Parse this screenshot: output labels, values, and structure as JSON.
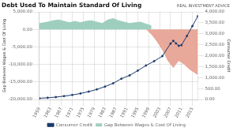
{
  "chart_data": {
    "type": "line",
    "title": "Debt Used To Maintain Standard Of Living",
    "annotation": "REAL INVESTMENT ADVICE",
    "xlim": [
      1959,
      2017
    ],
    "xticks": [
      1959,
      1963,
      1967,
      1971,
      1975,
      1979,
      1983,
      1987,
      1991,
      1995,
      1999,
      2003,
      2007,
      2011,
      2015
    ],
    "ylabel": "Gap Between Wages & Cost Of Living",
    "ylim": [
      -20000,
      5000
    ],
    "yticks": [
      {
        "value": -20000,
        "label": "-20,000.00"
      },
      {
        "value": -15000,
        "label": "-15,000.00"
      },
      {
        "value": -10000,
        "label": "-10,000.00"
      },
      {
        "value": -5000,
        "label": "-5,000.00"
      },
      {
        "value": 0,
        "label": "0.00"
      },
      {
        "value": 5000,
        "label": "5,000.00"
      }
    ],
    "y2label": "Consumer Credit",
    "y2lim": [
      0,
      4000
    ],
    "y2ticks": [
      {
        "value": 0,
        "label": "0.00"
      },
      {
        "value": 500,
        "label": "500.00"
      },
      {
        "value": 1000,
        "label": "1,000.00"
      },
      {
        "value": 1500,
        "label": "1,500.00"
      },
      {
        "value": 2000,
        "label": "2,000.00"
      },
      {
        "value": 2500,
        "label": "2,500.00"
      },
      {
        "value": 3000,
        "label": "3,000.00"
      },
      {
        "value": 3500,
        "label": "3,500.00"
      },
      {
        "value": 4000,
        "label": "4,000.00"
      }
    ],
    "grid": true,
    "legend": "bottom",
    "series": [
      {
        "name": "Gap Between Wages & Cost Of Living",
        "type": "area",
        "color": "#9ecfbe",
        "x": [
          1959,
          1962,
          1964,
          1966,
          1968,
          1970,
          1972,
          1974,
          1976,
          1978,
          1980,
          1982,
          1984,
          1986,
          1988,
          1990,
          1992,
          1994,
          1996,
          1998,
          2000
        ],
        "values": [
          1800,
          2200,
          2600,
          2800,
          2400,
          2000,
          2400,
          2000,
          2400,
          2600,
          2200,
          1800,
          2800,
          3200,
          2600,
          2200,
          1800,
          2000,
          2200,
          1600,
          1200
        ]
      },
      {
        "type": "area",
        "color": "#e8a89a",
        "x": [
          1998,
          2000,
          2002,
          2004,
          2006,
          2008,
          2010,
          2012,
          2014,
          2016,
          2017
        ],
        "values": [
          0,
          -1500,
          -3500,
          -6000,
          -9000,
          -11000,
          -9000,
          -10000,
          -11500,
          -12500,
          -13000
        ]
      },
      {
        "name": "Consumer Credit",
        "type": "line",
        "color": "#1b3a6b",
        "marker": "circle",
        "axis": "y2",
        "x": [
          1959,
          1962,
          1965,
          1968,
          1971,
          1974,
          1977,
          1980,
          1983,
          1986,
          1989,
          1992,
          1995,
          1998,
          2001,
          2004,
          2007,
          2008,
          2009,
          2010,
          2011,
          2013,
          2015,
          2017
        ],
        "values": [
          55,
          80,
          110,
          155,
          205,
          275,
          360,
          460,
          590,
          740,
          950,
          1100,
          1320,
          1550,
          1750,
          1980,
          2550,
          2680,
          2560,
          2450,
          2480,
          2900,
          3350,
          3800
        ]
      }
    ]
  }
}
